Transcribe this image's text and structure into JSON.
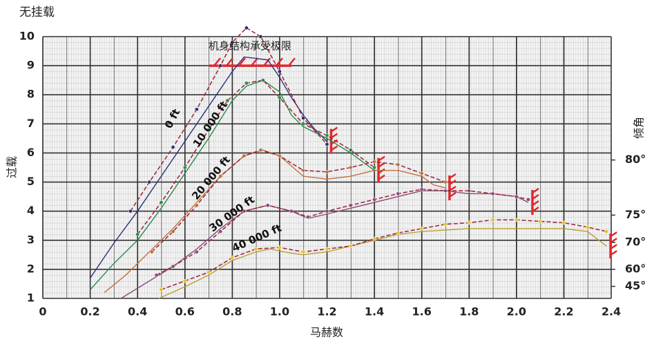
{
  "chart_data": {
    "type": "line",
    "title": "无挂载",
    "xlabel": "马赫数",
    "ylabel": "过载",
    "y2label": "倾角",
    "xlim": [
      0,
      2.4
    ],
    "xticks": [
      0,
      0.2,
      0.4,
      0.6,
      0.8,
      {
        "value": 1,
        "label": "1.0"
      },
      1.2,
      1.4,
      1.6,
      1.8,
      {
        "value": 2,
        "label": "2.0"
      },
      2.2,
      2.4
    ],
    "ylim": [
      1,
      10
    ],
    "yticks": [
      1,
      2,
      3,
      4,
      5,
      6,
      7,
      8,
      9,
      10
    ],
    "y2scale": "secant",
    "y2ticks": [
      {
        "value": 80,
        "label": "80°"
      },
      {
        "value": 75,
        "label": "75°"
      },
      {
        "value": 70,
        "label": "70°"
      },
      {
        "value": 60,
        "label": "60°"
      },
      {
        "value": 45,
        "label": "45°"
      }
    ],
    "grid": true,
    "structural_limit": {
      "label": "机身结构承受极限",
      "value": 9,
      "xrange": [
        0.7,
        1.05
      ],
      "color": "#e0282e"
    },
    "series": [
      {
        "name": "0 ft",
        "color": "#2b2f7a",
        "dash": false,
        "x": [
          0.2,
          0.3,
          0.4,
          0.5,
          0.6,
          0.7,
          0.8,
          0.85,
          0.95,
          1.0,
          1.05,
          1.1,
          1.15,
          1.2
        ],
        "values": [
          1.7,
          2.9,
          4.0,
          5.2,
          6.4,
          7.6,
          8.8,
          9.3,
          9.2,
          8.6,
          7.9,
          7.3,
          6.8,
          6.4
        ]
      },
      {
        "color": "#9e2a3f",
        "marker_color": "#2b2f7a",
        "dash": true,
        "x": [
          0.37,
          0.45,
          0.55,
          0.65,
          0.75,
          0.8,
          0.86,
          0.92,
          1.0,
          1.1,
          1.2
        ],
        "values": [
          4.0,
          5.0,
          6.2,
          7.5,
          9.0,
          9.8,
          10.3,
          10.0,
          8.8,
          7.2,
          6.3
        ]
      },
      {
        "name": "10 000 ft",
        "color": "#2a8a4a",
        "dash": false,
        "x": [
          0.2,
          0.3,
          0.4,
          0.5,
          0.6,
          0.7,
          0.8,
          0.86,
          0.93,
          1.0,
          1.05,
          1.1,
          1.2,
          1.3,
          1.4
        ],
        "values": [
          1.3,
          2.2,
          3.0,
          4.1,
          5.3,
          6.5,
          7.8,
          8.3,
          8.5,
          8.1,
          7.3,
          6.9,
          6.5,
          6.0,
          5.4
        ]
      },
      {
        "color": "#9e2a3f",
        "marker_color": "#2a8a4a",
        "dash": true,
        "x": [
          0.4,
          0.5,
          0.6,
          0.7,
          0.78,
          0.86,
          0.93,
          1.0,
          1.1,
          1.2,
          1.3,
          1.4
        ],
        "values": [
          3.2,
          4.3,
          5.5,
          6.8,
          7.8,
          8.4,
          8.5,
          7.9,
          7.0,
          6.6,
          6.1,
          5.5
        ]
      },
      {
        "name": "20 000 ft",
        "color": "#c0703a",
        "dash": false,
        "x": [
          0.26,
          0.35,
          0.45,
          0.55,
          0.65,
          0.75,
          0.85,
          0.93,
          1.0,
          1.1,
          1.2,
          1.3,
          1.4,
          1.5,
          1.6,
          1.65,
          1.7
        ],
        "values": [
          1.2,
          1.8,
          2.6,
          3.4,
          4.3,
          5.2,
          5.9,
          6.1,
          5.9,
          5.2,
          5.1,
          5.2,
          5.4,
          5.4,
          5.2,
          4.9,
          4.8
        ]
      },
      {
        "color": "#9e2a3f",
        "marker_color": "#c0703a",
        "dash": true,
        "x": [
          0.46,
          0.55,
          0.65,
          0.75,
          0.85,
          0.92,
          1.0,
          1.1,
          1.2,
          1.3,
          1.4,
          1.5,
          1.6,
          1.7
        ],
        "values": [
          2.6,
          3.3,
          4.2,
          5.2,
          5.9,
          6.1,
          5.9,
          5.4,
          5.35,
          5.5,
          5.7,
          5.6,
          5.3,
          5.0
        ]
      },
      {
        "name": "30 000 ft",
        "color": "#8a4a7a",
        "dash": false,
        "x": [
          0.33,
          0.45,
          0.55,
          0.65,
          0.75,
          0.85,
          0.95,
          1.05,
          1.12,
          1.2,
          1.3,
          1.4,
          1.5,
          1.6,
          1.7,
          1.8,
          1.9,
          2.0,
          2.05
        ],
        "values": [
          1.0,
          1.6,
          2.1,
          2.7,
          3.4,
          4.0,
          4.2,
          4.0,
          3.75,
          3.9,
          4.1,
          4.3,
          4.5,
          4.7,
          4.7,
          4.6,
          4.6,
          4.5,
          4.3
        ]
      },
      {
        "color": "#9e2a3f",
        "marker_color": "#8a4a7a",
        "dash": true,
        "x": [
          0.48,
          0.55,
          0.65,
          0.75,
          0.85,
          0.95,
          1.05,
          1.12,
          1.2,
          1.3,
          1.4,
          1.5,
          1.6,
          1.7,
          1.8,
          1.9,
          2.0,
          2.05
        ],
        "values": [
          1.8,
          2.1,
          2.6,
          3.3,
          4.0,
          4.2,
          4.0,
          3.8,
          4.0,
          4.2,
          4.4,
          4.6,
          4.75,
          4.7,
          4.7,
          4.6,
          4.5,
          4.4
        ]
      },
      {
        "name": "40 000 ft",
        "color": "#b8a030",
        "dash": false,
        "x": [
          0.49,
          0.6,
          0.7,
          0.8,
          0.9,
          0.96,
          1.05,
          1.1,
          1.2,
          1.3,
          1.4,
          1.5,
          1.6,
          1.8,
          2.0,
          2.2,
          2.3,
          2.38
        ],
        "values": [
          1.0,
          1.4,
          1.8,
          2.3,
          2.6,
          2.7,
          2.55,
          2.5,
          2.6,
          2.8,
          3.0,
          3.2,
          3.3,
          3.4,
          3.4,
          3.4,
          3.3,
          2.8
        ]
      },
      {
        "color": "#9e2a3f",
        "marker_color": "#e8c020",
        "dash": true,
        "x": [
          0.5,
          0.6,
          0.7,
          0.8,
          0.9,
          1.0,
          1.1,
          1.2,
          1.3,
          1.4,
          1.5,
          1.6,
          1.7,
          1.8,
          1.9,
          2.0,
          2.1,
          2.2,
          2.3,
          2.38
        ],
        "values": [
          1.3,
          1.6,
          1.9,
          2.4,
          2.7,
          2.75,
          2.6,
          2.7,
          2.8,
          3.05,
          3.25,
          3.4,
          3.55,
          3.6,
          3.7,
          3.7,
          3.65,
          3.6,
          3.45,
          3.3
        ]
      }
    ]
  }
}
